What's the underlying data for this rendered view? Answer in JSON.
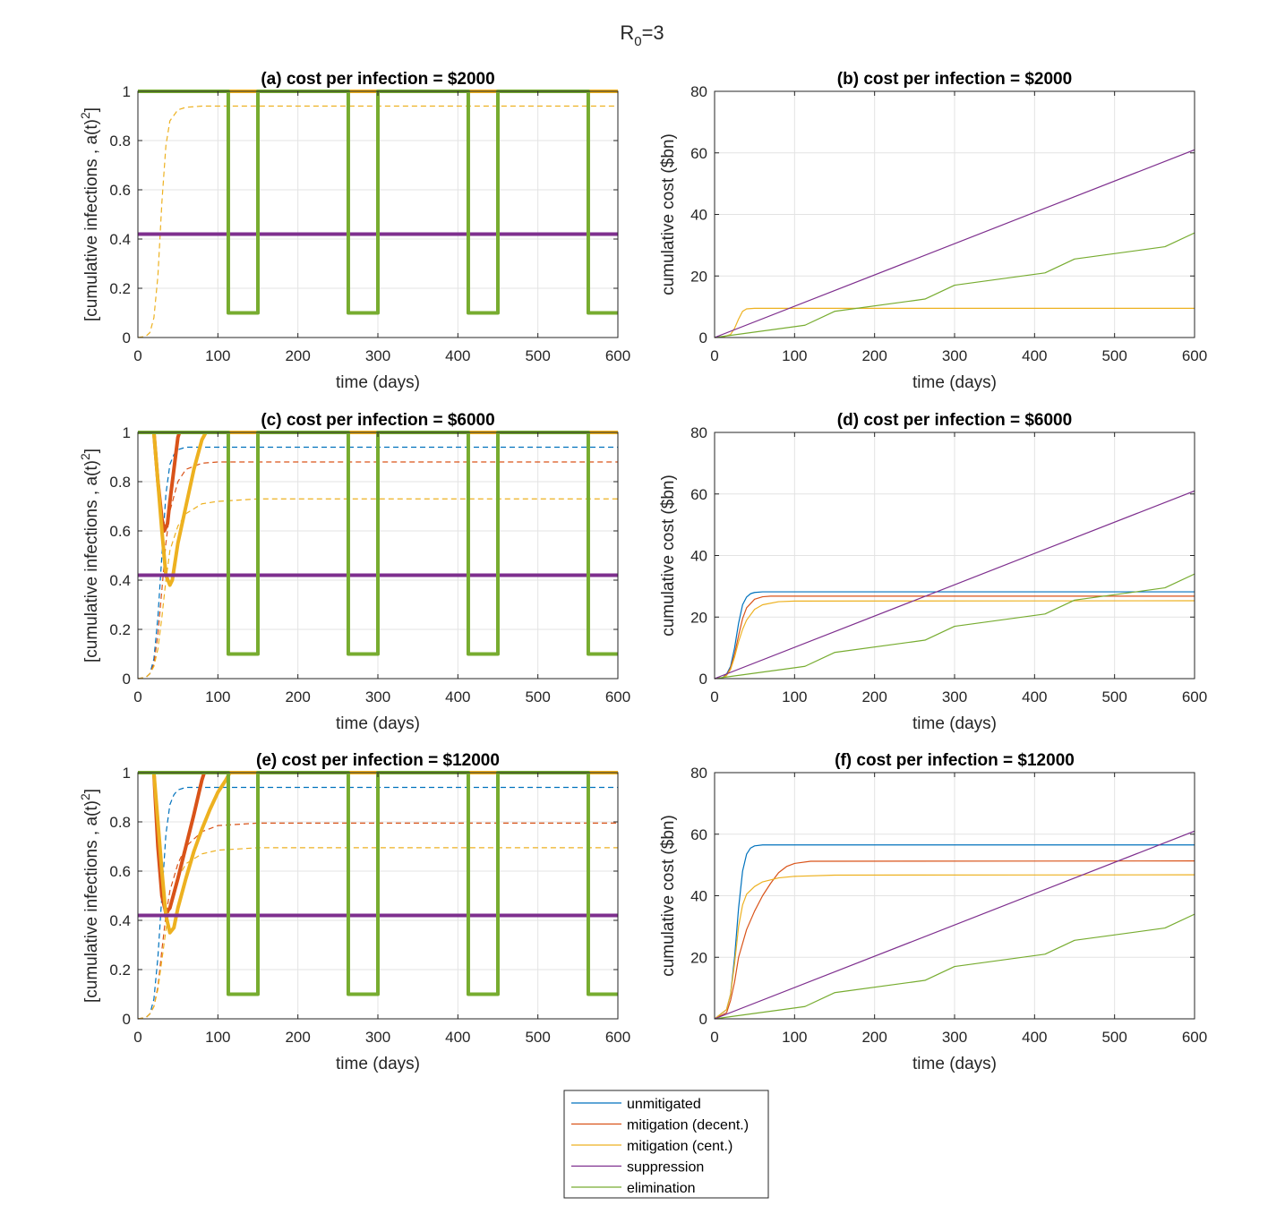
{
  "suptitle": {
    "main": "R",
    "sub": "0",
    "rest": "=3"
  },
  "colors": {
    "unmitigated": "#0072BD",
    "mitigation_decent": "#D95319",
    "mitigation_cent": "#EDB120",
    "suppression": "#7E2F8E",
    "elimination": "#77AC30"
  },
  "legend": {
    "items": [
      {
        "key": "unmitigated",
        "label": "unmitigated"
      },
      {
        "key": "mitigation_decent",
        "label": "mitigation (decent.)"
      },
      {
        "key": "mitigation_cent",
        "label": "mitigation (cent.)"
      },
      {
        "key": "suppression",
        "label": "suppression"
      },
      {
        "key": "elimination",
        "label": "elimination"
      }
    ]
  },
  "chart_data": [
    {
      "id": "a",
      "type": "line",
      "title": "(a) cost per infection = $2000",
      "xlabel": "time (days)",
      "ylabel": "[cumulative infections  ,  a(t)",
      "ylabel_sup": "2",
      "ylabel_end": "]",
      "xlim": [
        0,
        600
      ],
      "ylim": [
        0,
        1
      ],
      "xticks": [
        0,
        100,
        200,
        300,
        400,
        500,
        600
      ],
      "yticks": [
        0,
        0.2,
        0.4,
        0.6,
        0.8,
        1
      ],
      "grid": true,
      "series": [
        {
          "key": "mitigation_cent",
          "style": "dashed",
          "width": 1.2,
          "x": [
            0,
            10,
            15,
            20,
            25,
            30,
            35,
            40,
            50,
            60,
            80,
            600
          ],
          "y": [
            0,
            0.005,
            0.02,
            0.08,
            0.25,
            0.55,
            0.78,
            0.88,
            0.925,
            0.935,
            0.94,
            0.94
          ]
        },
        {
          "key": "mitigation_cent",
          "style": "solid",
          "width": 4,
          "x": [
            0,
            600
          ],
          "y": [
            1,
            1
          ]
        },
        {
          "key": "suppression",
          "style": "solid",
          "width": 4,
          "x": [
            0,
            600
          ],
          "y": [
            0.42,
            0.42
          ]
        },
        {
          "key": "elimination",
          "style": "solid",
          "width": 4,
          "x": [
            0,
            113,
            113,
            150,
            150,
            263,
            263,
            300,
            300,
            413,
            413,
            450,
            450,
            563,
            563,
            600
          ],
          "y": [
            1,
            1,
            0.1,
            0.1,
            1,
            1,
            0.1,
            0.1,
            1,
            1,
            0.1,
            0.1,
            1,
            1,
            0.1,
            0.1
          ]
        }
      ]
    },
    {
      "id": "b",
      "type": "line",
      "title": "(b) cost per infection = $2000",
      "xlabel": "time (days)",
      "ylabel": "cumulative cost ($bn)",
      "xlim": [
        0,
        600
      ],
      "ylim": [
        0,
        80
      ],
      "xticks": [
        0,
        100,
        200,
        300,
        400,
        500,
        600
      ],
      "yticks": [
        0,
        20,
        40,
        60,
        80
      ],
      "grid": true,
      "series": [
        {
          "key": "mitigation_cent",
          "style": "solid",
          "width": 1.2,
          "x": [
            0,
            10,
            20,
            25,
            30,
            35,
            40,
            50,
            600
          ],
          "y": [
            0,
            0.1,
            1,
            3,
            6,
            8.5,
            9.3,
            9.5,
            9.5
          ]
        },
        {
          "key": "elimination",
          "style": "solid",
          "width": 1.2,
          "x": [
            0,
            113,
            150,
            263,
            300,
            413,
            450,
            563,
            600
          ],
          "y": [
            0,
            4,
            8.5,
            12.5,
            17,
            21,
            25.5,
            29.5,
            34
          ]
        },
        {
          "key": "suppression",
          "style": "solid",
          "width": 1.2,
          "x": [
            0,
            600
          ],
          "y": [
            0,
            61
          ]
        }
      ]
    },
    {
      "id": "c",
      "type": "line",
      "title": "(c) cost per infection = $6000",
      "xlabel": "time (days)",
      "ylabel": "[cumulative infections  ,  a(t)",
      "ylabel_sup": "2",
      "ylabel_end": "]",
      "xlim": [
        0,
        600
      ],
      "ylim": [
        0,
        1
      ],
      "xticks": [
        0,
        100,
        200,
        300,
        400,
        500,
        600
      ],
      "yticks": [
        0,
        0.2,
        0.4,
        0.6,
        0.8,
        1
      ],
      "grid": true,
      "series": [
        {
          "key": "unmitigated",
          "style": "dashed",
          "width": 1.2,
          "x": [
            0,
            10,
            15,
            20,
            25,
            30,
            35,
            40,
            45,
            50,
            60,
            80,
            600
          ],
          "y": [
            0,
            0.005,
            0.02,
            0.08,
            0.25,
            0.5,
            0.75,
            0.87,
            0.91,
            0.93,
            0.94,
            0.94,
            0.94
          ]
        },
        {
          "key": "mitigation_decent",
          "style": "dashed",
          "width": 1.2,
          "x": [
            0,
            10,
            15,
            20,
            25,
            30,
            35,
            40,
            50,
            60,
            80,
            100,
            600
          ],
          "y": [
            0,
            0.005,
            0.02,
            0.06,
            0.18,
            0.36,
            0.55,
            0.68,
            0.8,
            0.85,
            0.875,
            0.88,
            0.88
          ]
        },
        {
          "key": "mitigation_cent",
          "style": "dashed",
          "width": 1.2,
          "x": [
            0,
            10,
            15,
            20,
            25,
            30,
            35,
            40,
            50,
            60,
            80,
            100,
            150,
            600
          ],
          "y": [
            0,
            0.005,
            0.02,
            0.05,
            0.12,
            0.25,
            0.4,
            0.52,
            0.62,
            0.67,
            0.71,
            0.72,
            0.73,
            0.73
          ]
        },
        {
          "key": "mitigation_decent",
          "style": "solid",
          "width": 4,
          "x": [
            20,
            25,
            30,
            33,
            37,
            40,
            45,
            50,
            52,
            600
          ],
          "y": [
            1,
            0.8,
            0.65,
            0.6,
            0.63,
            0.72,
            0.85,
            0.98,
            1,
            1
          ]
        },
        {
          "key": "mitigation_cent",
          "style": "solid",
          "width": 4,
          "x": [
            20,
            25,
            30,
            35,
            40,
            43,
            50,
            60,
            70,
            80,
            85,
            600
          ],
          "y": [
            1,
            0.8,
            0.6,
            0.42,
            0.38,
            0.4,
            0.55,
            0.7,
            0.85,
            0.97,
            1,
            1
          ]
        },
        {
          "key": "suppression",
          "style": "solid",
          "width": 4,
          "x": [
            0,
            600
          ],
          "y": [
            0.42,
            0.42
          ]
        },
        {
          "key": "elimination",
          "style": "solid",
          "width": 4,
          "x": [
            0,
            113,
            113,
            150,
            150,
            263,
            263,
            300,
            300,
            413,
            413,
            450,
            450,
            563,
            563,
            600
          ],
          "y": [
            1,
            1,
            0.1,
            0.1,
            1,
            1,
            0.1,
            0.1,
            1,
            1,
            0.1,
            0.1,
            1,
            1,
            0.1,
            0.1
          ]
        }
      ]
    },
    {
      "id": "d",
      "type": "line",
      "title": "(d) cost per infection = $6000",
      "xlabel": "time (days)",
      "ylabel": "cumulative cost ($bn)",
      "xlim": [
        0,
        600
      ],
      "ylim": [
        0,
        80
      ],
      "xticks": [
        0,
        100,
        200,
        300,
        400,
        500,
        600
      ],
      "yticks": [
        0,
        20,
        40,
        60,
        80
      ],
      "grid": true,
      "series": [
        {
          "key": "unmitigated",
          "style": "solid",
          "width": 1.2,
          "x": [
            0,
            10,
            15,
            20,
            25,
            30,
            35,
            40,
            45,
            50,
            60,
            600
          ],
          "y": [
            0,
            0.3,
            1.5,
            4,
            10,
            18,
            24,
            26.5,
            27.6,
            28,
            28.2,
            28.2
          ]
        },
        {
          "key": "mitigation_decent",
          "style": "solid",
          "width": 1.2,
          "x": [
            0,
            10,
            15,
            20,
            25,
            30,
            35,
            40,
            50,
            60,
            70,
            600
          ],
          "y": [
            0,
            0.3,
            1.2,
            3.5,
            8,
            14,
            19.5,
            23,
            25.8,
            26.6,
            26.8,
            26.8
          ]
        },
        {
          "key": "mitigation_cent",
          "style": "solid",
          "width": 1.2,
          "x": [
            0,
            10,
            15,
            20,
            25,
            30,
            35,
            40,
            50,
            60,
            80,
            100,
            600
          ],
          "y": [
            0,
            0.3,
            1,
            3,
            7,
            12,
            16,
            19,
            22.5,
            24,
            25,
            25.2,
            25.3
          ]
        },
        {
          "key": "elimination",
          "style": "solid",
          "width": 1.2,
          "x": [
            0,
            113,
            150,
            263,
            300,
            413,
            450,
            563,
            600
          ],
          "y": [
            0,
            4,
            8.5,
            12.5,
            17,
            21,
            25.5,
            29.5,
            34
          ]
        },
        {
          "key": "suppression",
          "style": "solid",
          "width": 1.2,
          "x": [
            0,
            600
          ],
          "y": [
            0,
            61
          ]
        }
      ]
    },
    {
      "id": "e",
      "type": "line",
      "title": "(e) cost per infection = $12000",
      "xlabel": "time (days)",
      "ylabel": "[cumulative infections  ,  a(t)",
      "ylabel_sup": "2",
      "ylabel_end": "]",
      "xlim": [
        0,
        600
      ],
      "ylim": [
        0,
        1
      ],
      "xticks": [
        0,
        100,
        200,
        300,
        400,
        500,
        600
      ],
      "yticks": [
        0,
        0.2,
        0.4,
        0.6,
        0.8,
        1
      ],
      "grid": true,
      "series": [
        {
          "key": "unmitigated",
          "style": "dashed",
          "width": 1.2,
          "x": [
            0,
            10,
            15,
            20,
            25,
            30,
            35,
            40,
            45,
            50,
            60,
            80,
            600
          ],
          "y": [
            0,
            0.005,
            0.02,
            0.08,
            0.25,
            0.5,
            0.75,
            0.87,
            0.91,
            0.93,
            0.94,
            0.94,
            0.94
          ]
        },
        {
          "key": "mitigation_decent",
          "style": "dashed",
          "width": 1.2,
          "x": [
            0,
            10,
            15,
            20,
            25,
            30,
            35,
            40,
            50,
            60,
            80,
            100,
            150,
            600
          ],
          "y": [
            0,
            0.005,
            0.02,
            0.05,
            0.13,
            0.28,
            0.42,
            0.52,
            0.63,
            0.7,
            0.76,
            0.785,
            0.795,
            0.795
          ]
        },
        {
          "key": "mitigation_cent",
          "style": "dashed",
          "width": 1.2,
          "x": [
            0,
            10,
            15,
            20,
            25,
            30,
            35,
            40,
            50,
            60,
            80,
            100,
            150,
            600
          ],
          "y": [
            0,
            0.005,
            0.02,
            0.05,
            0.12,
            0.24,
            0.36,
            0.46,
            0.57,
            0.63,
            0.67,
            0.685,
            0.695,
            0.695
          ]
        },
        {
          "key": "mitigation_decent",
          "style": "solid",
          "width": 4,
          "x": [
            20,
            25,
            30,
            35,
            40,
            50,
            60,
            70,
            80,
            83,
            600
          ],
          "y": [
            1,
            0.7,
            0.5,
            0.43,
            0.45,
            0.57,
            0.7,
            0.83,
            0.97,
            1,
            1
          ]
        },
        {
          "key": "mitigation_cent",
          "style": "solid",
          "width": 4,
          "x": [
            20,
            25,
            30,
            35,
            40,
            45,
            50,
            60,
            70,
            80,
            90,
            100,
            110,
            115,
            600
          ],
          "y": [
            1,
            0.8,
            0.6,
            0.42,
            0.35,
            0.37,
            0.45,
            0.57,
            0.68,
            0.77,
            0.85,
            0.92,
            0.97,
            1,
            1
          ]
        },
        {
          "key": "suppression",
          "style": "solid",
          "width": 4,
          "x": [
            0,
            600
          ],
          "y": [
            0.42,
            0.42
          ]
        },
        {
          "key": "elimination",
          "style": "solid",
          "width": 4,
          "x": [
            0,
            113,
            113,
            150,
            150,
            263,
            263,
            300,
            300,
            413,
            413,
            450,
            450,
            563,
            563,
            600
          ],
          "y": [
            1,
            1,
            0.1,
            0.1,
            1,
            1,
            0.1,
            0.1,
            1,
            1,
            0.1,
            0.1,
            1,
            1,
            0.1,
            0.1
          ]
        }
      ]
    },
    {
      "id": "f",
      "type": "line",
      "title": "(f) cost per infection = $12000",
      "xlabel": "time (days)",
      "ylabel": "cumulative cost ($bn)",
      "xlim": [
        0,
        600
      ],
      "ylim": [
        0,
        80
      ],
      "xticks": [
        0,
        100,
        200,
        300,
        400,
        500,
        600
      ],
      "yticks": [
        0,
        20,
        40,
        60,
        80
      ],
      "grid": true,
      "series": [
        {
          "key": "unmitigated",
          "style": "solid",
          "width": 1.2,
          "x": [
            0,
            15,
            20,
            25,
            30,
            35,
            40,
            45,
            50,
            60,
            600
          ],
          "y": [
            0,
            3,
            8,
            20,
            36,
            48,
            53.5,
            55.5,
            56.2,
            56.5,
            56.5
          ]
        },
        {
          "key": "mitigation_decent",
          "style": "solid",
          "width": 1.2,
          "x": [
            0,
            15,
            20,
            25,
            30,
            40,
            50,
            60,
            70,
            80,
            90,
            100,
            120,
            600
          ],
          "y": [
            0,
            2,
            6,
            12,
            20,
            29,
            35,
            40,
            44,
            47.5,
            49.5,
            50.5,
            51.2,
            51.3
          ]
        },
        {
          "key": "mitigation_cent",
          "style": "solid",
          "width": 1.2,
          "x": [
            0,
            15,
            20,
            25,
            30,
            35,
            40,
            50,
            60,
            80,
            100,
            150,
            600
          ],
          "y": [
            0,
            3,
            8,
            18,
            30,
            37,
            40.5,
            43,
            44.5,
            45.8,
            46.3,
            46.7,
            46.8
          ]
        },
        {
          "key": "elimination",
          "style": "solid",
          "width": 1.2,
          "x": [
            0,
            113,
            150,
            263,
            300,
            413,
            450,
            563,
            600
          ],
          "y": [
            0,
            4,
            8.5,
            12.5,
            17,
            21,
            25.5,
            29.5,
            34
          ]
        },
        {
          "key": "suppression",
          "style": "solid",
          "width": 1.2,
          "x": [
            0,
            600
          ],
          "y": [
            0,
            61
          ]
        }
      ]
    }
  ]
}
